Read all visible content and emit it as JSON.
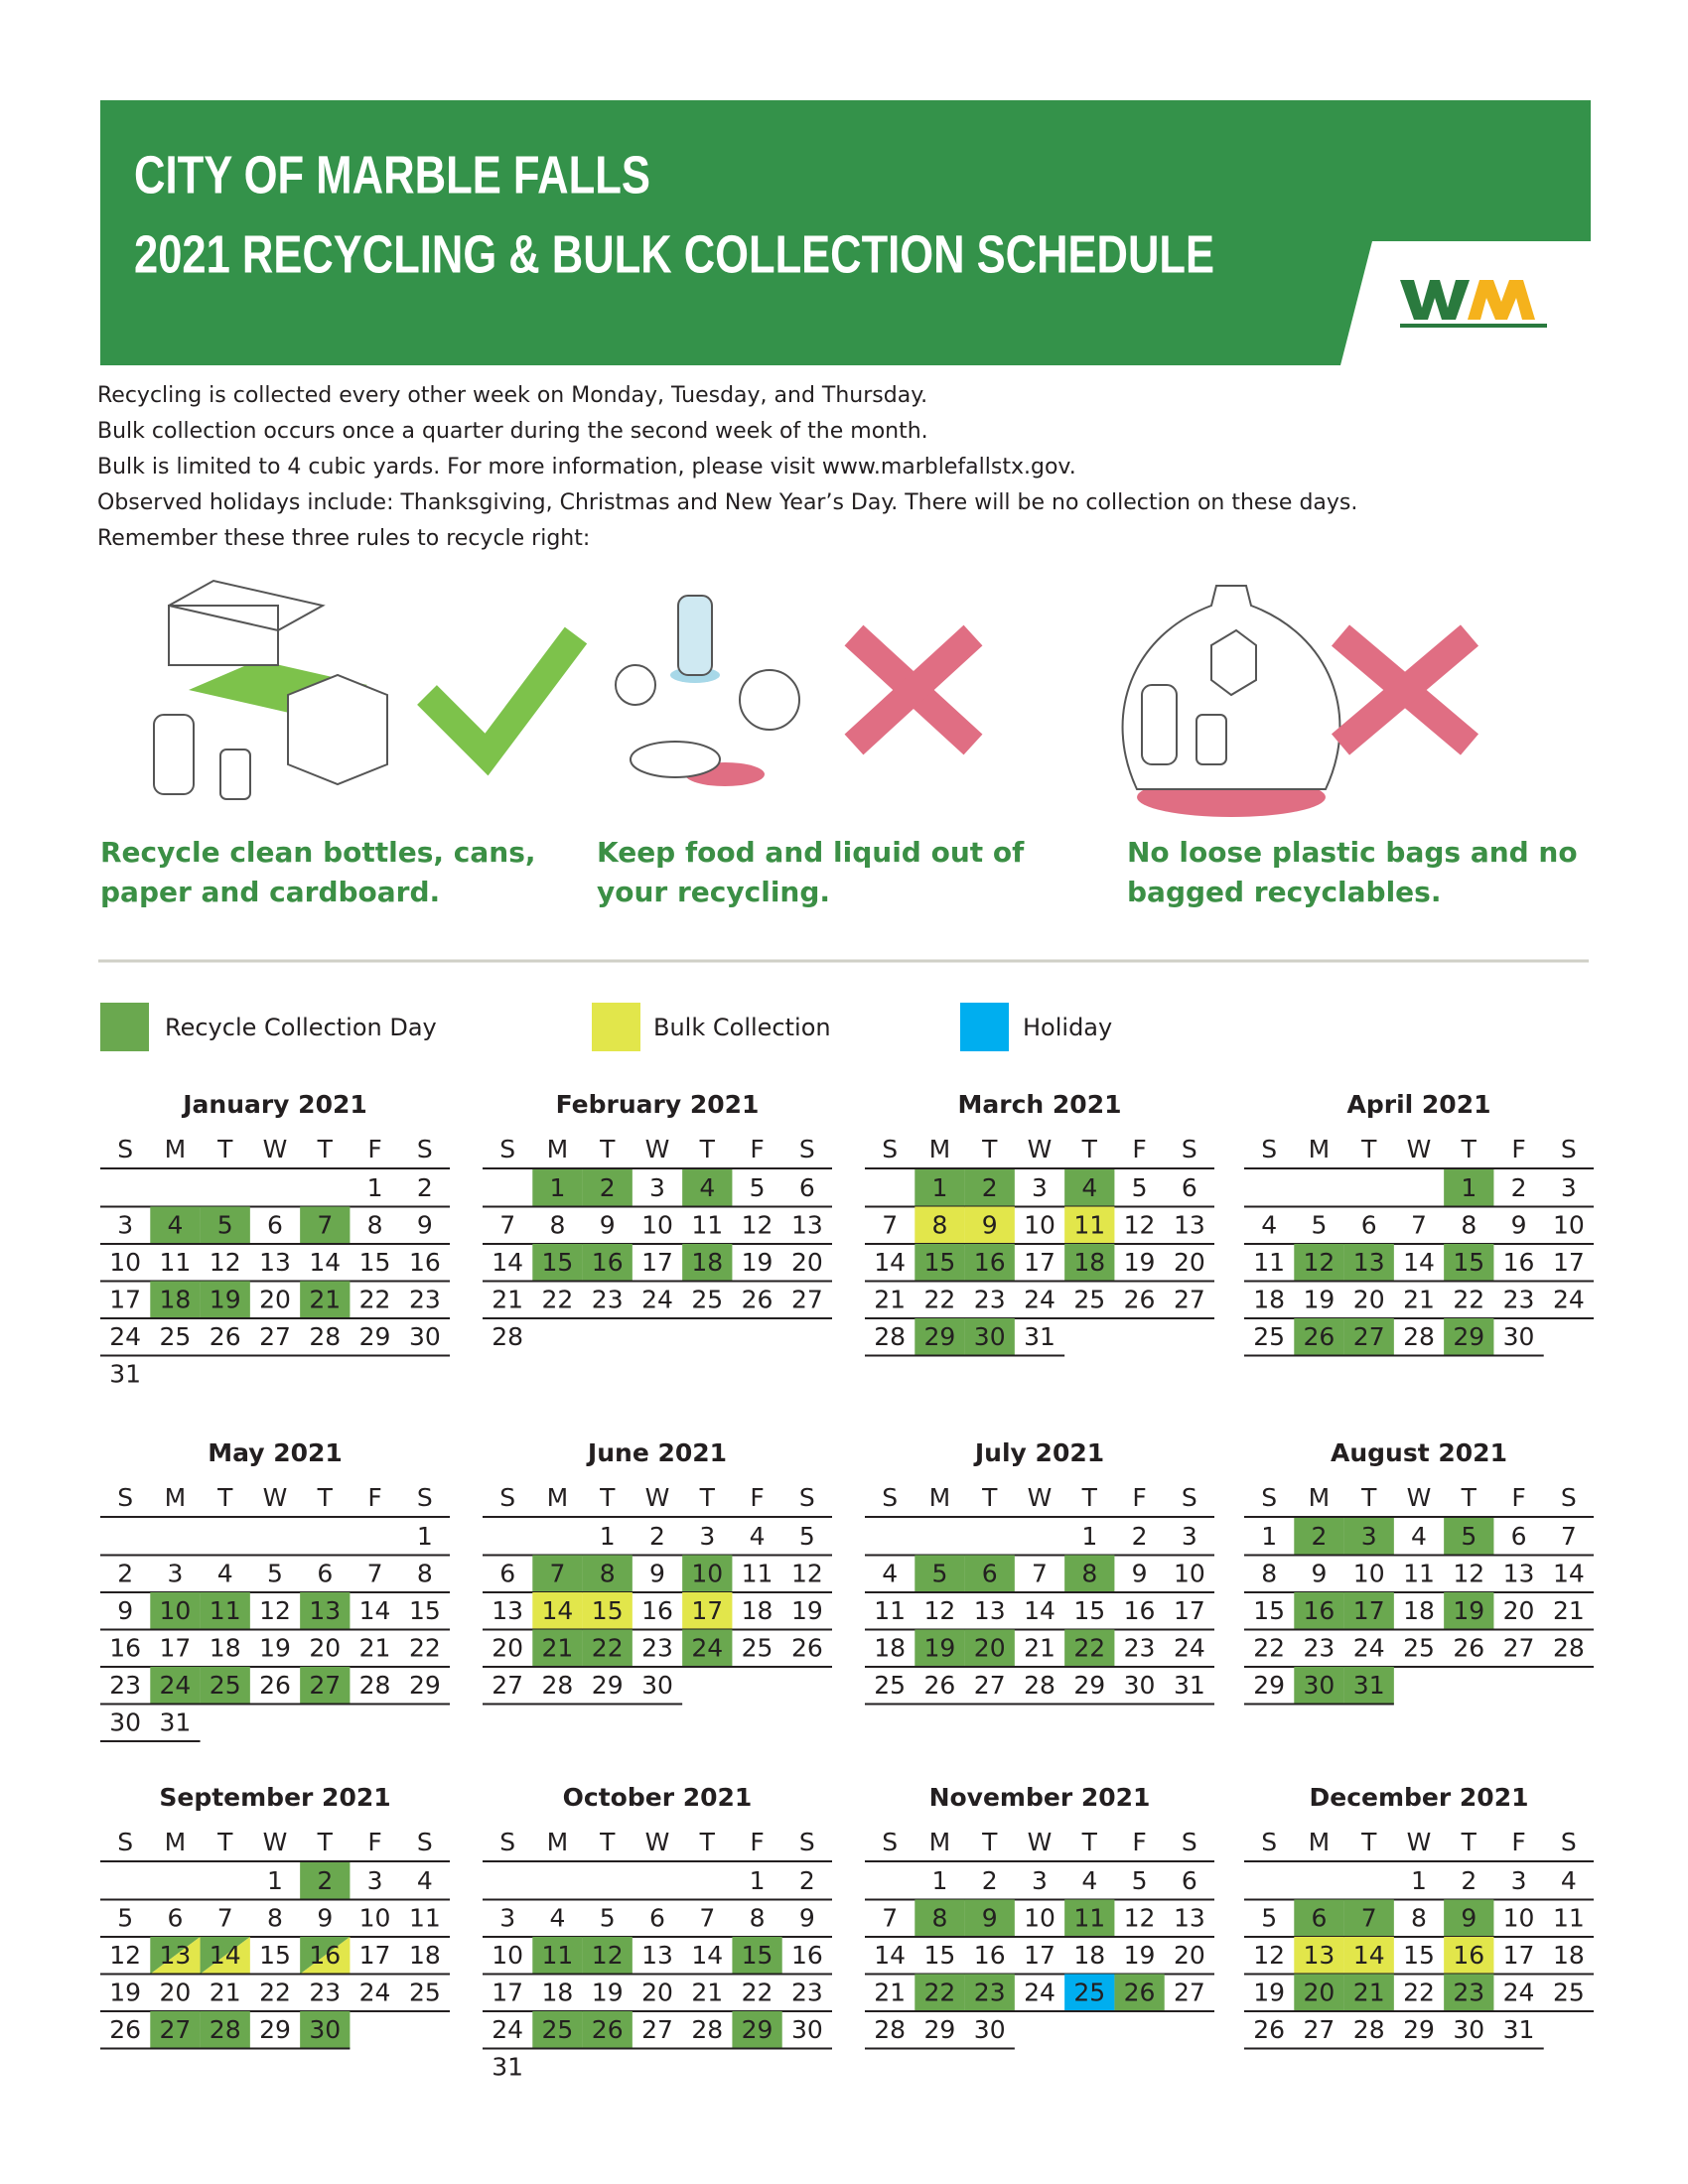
{
  "header": {
    "title_lines": [
      "CITY OF MARBLE FALLS",
      "2021 RECYCLING & BULK COLLECTION SCHEDULE"
    ]
  },
  "intro": [
    "Recycling is collected every other week on Monday, Tuesday, and Thursday.",
    "Bulk collection occurs once a quarter during the second week of the month.",
    "Bulk is limited to 4 cubic yards. For more information, please visit www.marblefallstx.gov.",
    "Observed holidays include: Thanksgiving, Christmas and New Year’s Day. There will be no collection on these days.",
    "Remember these three rules to recycle right:"
  ],
  "rules": [
    {
      "caption_lines": [
        "Recycle clean bottles, cans,",
        "paper and cardboard."
      ]
    },
    {
      "caption_lines": [
        "Keep food and liquid out of",
        "your recycling."
      ]
    },
    {
      "caption_lines": [
        "No loose plastic bags and no",
        "bagged recyclables."
      ]
    }
  ],
  "legend": [
    {
      "key": "recycle",
      "label": "Recycle Collection Day",
      "color": "#6aa84f"
    },
    {
      "key": "bulk",
      "label": "Bulk Collection",
      "color": "#e2e64b"
    },
    {
      "key": "holiday",
      "label": "Holiday",
      "color": "#00aeef"
    }
  ],
  "weekdays": [
    "S",
    "M",
    "T",
    "W",
    "T",
    "F",
    "S"
  ],
  "months": [
    {
      "title": "January 2021",
      "weeks": [
        [
          null,
          null,
          null,
          null,
          null,
          1,
          2
        ],
        [
          3,
          4,
          5,
          6,
          7,
          8,
          9
        ],
        [
          10,
          11,
          12,
          13,
          14,
          15,
          16
        ],
        [
          17,
          18,
          19,
          20,
          21,
          22,
          23
        ],
        [
          24,
          25,
          26,
          27,
          28,
          29,
          30
        ],
        [
          31
        ]
      ],
      "recycle": [
        4,
        5,
        7,
        18,
        19,
        21
      ]
    },
    {
      "title": "February 2021",
      "weeks": [
        [
          null,
          1,
          2,
          3,
          4,
          5,
          6
        ],
        [
          7,
          8,
          9,
          10,
          11,
          12,
          13
        ],
        [
          14,
          15,
          16,
          17,
          18,
          19,
          20
        ],
        [
          21,
          22,
          23,
          24,
          25,
          26,
          27
        ],
        [
          28
        ]
      ],
      "recycle": [
        1,
        2,
        4,
        15,
        16,
        18
      ]
    },
    {
      "title": "March 2021",
      "weeks": [
        [
          null,
          1,
          2,
          3,
          4,
          5,
          6
        ],
        [
          7,
          8,
          9,
          10,
          11,
          12,
          13
        ],
        [
          14,
          15,
          16,
          17,
          18,
          19,
          20
        ],
        [
          21,
          22,
          23,
          24,
          25,
          26,
          27
        ],
        [
          28,
          29,
          30,
          31
        ]
      ],
      "recycle": [
        1,
        2,
        4,
        15,
        16,
        18,
        29,
        30
      ],
      "bulk": [
        8,
        9,
        11
      ]
    },
    {
      "title": "April 2021",
      "weeks": [
        [
          null,
          null,
          null,
          null,
          1,
          2,
          3
        ],
        [
          4,
          5,
          6,
          7,
          8,
          9,
          10
        ],
        [
          11,
          12,
          13,
          14,
          15,
          16,
          17
        ],
        [
          18,
          19,
          20,
          21,
          22,
          23,
          24
        ],
        [
          25,
          26,
          27,
          28,
          29,
          30
        ]
      ],
      "recycle": [
        1,
        12,
        13,
        15,
        26,
        27,
        29
      ]
    },
    {
      "title": "May 2021",
      "weeks": [
        [
          null,
          null,
          null,
          null,
          null,
          null,
          1
        ],
        [
          2,
          3,
          4,
          5,
          6,
          7,
          8
        ],
        [
          9,
          10,
          11,
          12,
          13,
          14,
          15
        ],
        [
          16,
          17,
          18,
          19,
          20,
          21,
          22
        ],
        [
          23,
          24,
          25,
          26,
          27,
          28,
          29
        ],
        [
          30,
          31
        ]
      ],
      "recycle": [
        10,
        11,
        13,
        24,
        25,
        27
      ]
    },
    {
      "title": "June 2021",
      "weeks": [
        [
          null,
          null,
          1,
          2,
          3,
          4,
          5
        ],
        [
          6,
          7,
          8,
          9,
          10,
          11,
          12
        ],
        [
          13,
          14,
          15,
          16,
          17,
          18,
          19
        ],
        [
          20,
          21,
          22,
          23,
          24,
          25,
          26
        ],
        [
          27,
          28,
          29,
          30
        ]
      ],
      "recycle": [
        7,
        8,
        10,
        21,
        22,
        24
      ],
      "bulk": [
        14,
        15,
        17
      ]
    },
    {
      "title": "July 2021",
      "weeks": [
        [
          null,
          null,
          null,
          null,
          1,
          2,
          3
        ],
        [
          4,
          5,
          6,
          7,
          8,
          9,
          10
        ],
        [
          11,
          12,
          13,
          14,
          15,
          16,
          17
        ],
        [
          18,
          19,
          20,
          21,
          22,
          23,
          24
        ],
        [
          25,
          26,
          27,
          28,
          29,
          30,
          31
        ]
      ],
      "recycle": [
        5,
        6,
        8,
        19,
        20,
        22
      ]
    },
    {
      "title": "August 2021",
      "weeks": [
        [
          1,
          2,
          3,
          4,
          5,
          6,
          7
        ],
        [
          8,
          9,
          10,
          11,
          12,
          13,
          14
        ],
        [
          15,
          16,
          17,
          18,
          19,
          20,
          21
        ],
        [
          22,
          23,
          24,
          25,
          26,
          27,
          28
        ],
        [
          29,
          30,
          31
        ]
      ],
      "recycle": [
        2,
        3,
        5,
        16,
        17,
        19,
        30,
        31
      ]
    },
    {
      "title": "September 2021",
      "weeks": [
        [
          null,
          null,
          null,
          1,
          2,
          3,
          4
        ],
        [
          5,
          6,
          7,
          8,
          9,
          10,
          11
        ],
        [
          12,
          13,
          14,
          15,
          16,
          17,
          18
        ],
        [
          19,
          20,
          21,
          22,
          23,
          24,
          25
        ],
        [
          26,
          27,
          28,
          29,
          30
        ]
      ],
      "recycle": [
        2,
        13,
        14,
        16,
        27,
        28,
        30
      ],
      "bulk": [
        13,
        14,
        16
      ]
    },
    {
      "title": "October 2021",
      "weeks": [
        [
          null,
          null,
          null,
          null,
          null,
          1,
          2
        ],
        [
          3,
          4,
          5,
          6,
          7,
          8,
          9
        ],
        [
          10,
          11,
          12,
          13,
          14,
          15,
          16
        ],
        [
          17,
          18,
          19,
          20,
          21,
          22,
          23
        ],
        [
          24,
          25,
          26,
          27,
          28,
          29,
          30
        ],
        [
          31
        ]
      ],
      "recycle": [
        11,
        12,
        15,
        25,
        26,
        29
      ]
    },
    {
      "title": "November 2021",
      "weeks": [
        [
          null,
          1,
          2,
          3,
          4,
          5,
          6
        ],
        [
          7,
          8,
          9,
          10,
          11,
          12,
          13
        ],
        [
          14,
          15,
          16,
          17,
          18,
          19,
          20
        ],
        [
          21,
          22,
          23,
          24,
          25,
          26,
          27
        ],
        [
          28,
          29,
          30
        ]
      ],
      "recycle": [
        8,
        9,
        11,
        22,
        23,
        26
      ],
      "holiday": [
        25
      ]
    },
    {
      "title": "December 2021",
      "weeks": [
        [
          null,
          null,
          null,
          1,
          2,
          3,
          4
        ],
        [
          5,
          6,
          7,
          8,
          9,
          10,
          11
        ],
        [
          12,
          13,
          14,
          15,
          16,
          17,
          18
        ],
        [
          19,
          20,
          21,
          22,
          23,
          24,
          25
        ],
        [
          26,
          27,
          28,
          29,
          30,
          31
        ]
      ],
      "recycle": [
        6,
        7,
        9,
        20,
        21,
        23
      ],
      "bulk": [
        13,
        14,
        16
      ]
    }
  ]
}
